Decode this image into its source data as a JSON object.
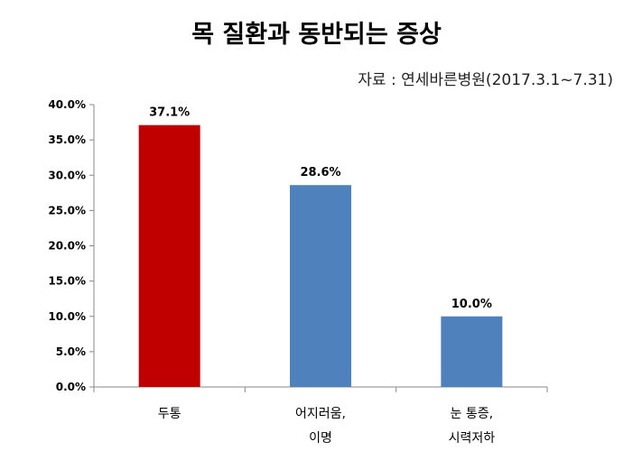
{
  "chart_data": {
    "type": "bar",
    "title": "목 질환과 동반되는 증상",
    "subtitle": "자료 : 연세바른병원(2017.3.1~7.31)",
    "categories": [
      [
        "두통"
      ],
      [
        "어지러움,",
        "이명"
      ],
      [
        "눈 통증,",
        "시력저하"
      ]
    ],
    "values": [
      37.1,
      28.6,
      10.0
    ],
    "data_labels": [
      "37.1%",
      "28.6%",
      "10.0%"
    ],
    "bar_colors": [
      "#C00000",
      "#4F81BD",
      "#4F81BD"
    ],
    "ylim": [
      0,
      40
    ],
    "yticks": [
      0,
      5,
      10,
      15,
      20,
      25,
      30,
      35,
      40
    ],
    "ytick_labels": [
      "0.0%",
      "5.0%",
      "10.0%",
      "15.0%",
      "20.0%",
      "25.0%",
      "30.0%",
      "35.0%",
      "40.0%"
    ],
    "grid": false,
    "legend": "none"
  }
}
